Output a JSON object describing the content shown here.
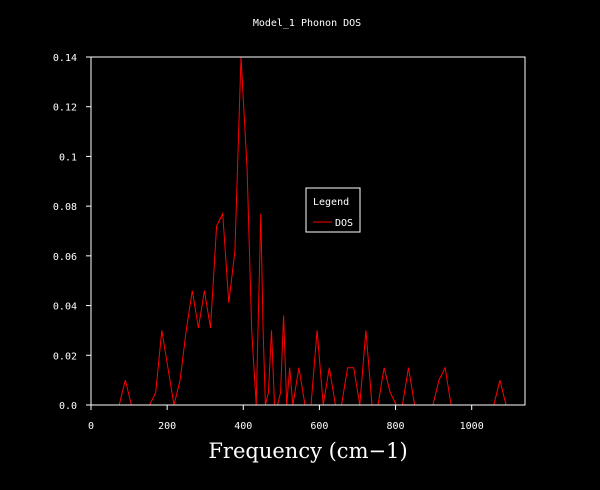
{
  "chart_data": {
    "type": "line",
    "title": "Model_1 Phonon DOS",
    "xlabel": "Frequency (cm−1)",
    "ylabel": "",
    "xlim": [
      0,
      1140
    ],
    "ylim": [
      0,
      0.14
    ],
    "x_ticks": [
      "0",
      "200",
      "400",
      "600",
      "800",
      "1000"
    ],
    "x_tick_values": [
      0,
      200,
      400,
      600,
      800,
      1000
    ],
    "y_ticks": [
      "0.0",
      "0.02",
      "0.04",
      "0.06",
      "0.08",
      "0.1",
      "0.12",
      "0.14"
    ],
    "y_tick_values": [
      0,
      0.02,
      0.04,
      0.06,
      0.08,
      0.1,
      0.12,
      0.14
    ],
    "grid": false,
    "legend": {
      "title": "Legend",
      "placement": "center-right"
    },
    "colors": {
      "background": "#000000",
      "axes": "#ffffff",
      "text": "#ffffff",
      "series": "#ff0000"
    },
    "series": [
      {
        "name": "DOS",
        "x": [
          74,
          90,
          106,
          122,
          138,
          154,
          170,
          186,
          202,
          218,
          234,
          250,
          266,
          282,
          298,
          314,
          330,
          346,
          362,
          378,
          394,
          410,
          422,
          434,
          446,
          452,
          458,
          466,
          474,
          482,
          490,
          498,
          506,
          514,
          522,
          530,
          546,
          562,
          578,
          594,
          610,
          626,
          642,
          658,
          674,
          690,
          706,
          722,
          738,
          754,
          770,
          786,
          802,
          818,
          834,
          850,
          866,
          882,
          898,
          914,
          930,
          946,
          962,
          978,
          994,
          1010,
          1026,
          1042,
          1058,
          1074,
          1090
        ],
        "y": [
          0,
          0.01,
          0,
          0,
          0,
          0,
          0.005,
          0.03,
          0.015,
          0,
          0.01,
          0.03,
          0.046,
          0.031,
          0.046,
          0.031,
          0.072,
          0.077,
          0.041,
          0.062,
          0.14,
          0.095,
          0.03,
          0,
          0.077,
          0.03,
          0,
          0.005,
          0.03,
          0,
          0,
          0.005,
          0.036,
          0,
          0.015,
          0,
          0.015,
          0,
          0,
          0.03,
          0,
          0.015,
          0,
          0,
          0.015,
          0.015,
          0,
          0.03,
          0,
          0,
          0.015,
          0.005,
          0,
          0,
          0.015,
          0,
          0,
          0,
          0,
          0.01,
          0.015,
          0,
          0,
          0,
          0,
          0,
          0,
          0,
          0,
          0.01,
          0
        ]
      }
    ]
  }
}
